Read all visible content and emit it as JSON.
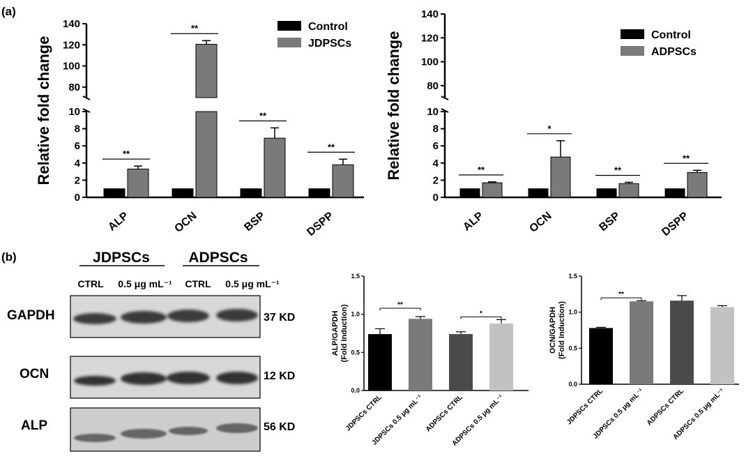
{
  "panels": {
    "a": "(a)",
    "b": "(b)"
  },
  "chart_data": [
    {
      "type": "bar",
      "panel": "(a)",
      "ylabel": "Relative fold change",
      "y_axis_break": true,
      "y_ranges": [
        [
          0,
          10
        ],
        [
          70,
          140
        ]
      ],
      "yticks_lower": [
        "0",
        "2",
        "4",
        "6",
        "8",
        "10"
      ],
      "yticks_upper": [
        "80",
        "100",
        "120",
        "140"
      ],
      "categories": [
        "ALP",
        "OCN",
        "BSP",
        "DSPP"
      ],
      "series": [
        {
          "name": "Control",
          "color": "#000000",
          "values": [
            1.0,
            1.0,
            1.0,
            1.0
          ],
          "errors": [
            0,
            0,
            0,
            0
          ]
        },
        {
          "name": "JDPSCs",
          "color": "#7a7a7a",
          "values": [
            3.3,
            120.5,
            6.9,
            3.8
          ],
          "errors": [
            0.35,
            3.5,
            1.2,
            0.65
          ]
        }
      ],
      "significance": [
        "**",
        "**",
        "**",
        "**"
      ]
    },
    {
      "type": "bar",
      "ylabel": "Relative fold change",
      "y_axis_break": true,
      "y_ranges": [
        [
          0,
          10
        ],
        [
          70,
          140
        ]
      ],
      "yticks_lower": [
        "0",
        "2",
        "4",
        "6",
        "8",
        "10"
      ],
      "yticks_upper": [
        "80",
        "100",
        "120",
        "140"
      ],
      "categories": [
        "ALP",
        "OCN",
        "BSP",
        "DSPP"
      ],
      "series": [
        {
          "name": "Control",
          "color": "#000000",
          "values": [
            1.0,
            1.0,
            1.0,
            1.0
          ],
          "errors": [
            0,
            0,
            0,
            0
          ]
        },
        {
          "name": "ADPSCs",
          "color": "#7a7a7a",
          "values": [
            1.7,
            4.7,
            1.6,
            2.9
          ],
          "errors": [
            0.1,
            1.9,
            0.15,
            0.25
          ]
        }
      ],
      "significance": [
        "**",
        "*",
        "**",
        "**"
      ]
    },
    {
      "type": "bar",
      "panel": "(b)",
      "ylabel": "ALP/GAPDH (Fold Induction)",
      "ylim": [
        0,
        1.5
      ],
      "yticks": [
        "0.0",
        "0.5",
        "1.0",
        "1.5"
      ],
      "categories": [
        "JDPSCs CTRL",
        "JDPSCs 0.5 μg mL⁻¹",
        "ADPSCs CTRL",
        "ADPSCs 0.5 μg mL⁻¹"
      ],
      "values": [
        0.74,
        0.94,
        0.74,
        0.88
      ],
      "errors": [
        0.07,
        0.03,
        0.03,
        0.05
      ],
      "colors": [
        "#000000",
        "#7a7a7a",
        "#4a4a4a",
        "#c2c2c2"
      ],
      "comparisons": [
        {
          "from": 0,
          "to": 1,
          "label": "**"
        },
        {
          "from": 2,
          "to": 3,
          "label": "*"
        }
      ]
    },
    {
      "type": "bar",
      "ylabel": "OCN/GAPDH (Fold Induction)",
      "ylim": [
        0,
        1.5
      ],
      "yticks": [
        "0.0",
        "0.5",
        "1.0",
        "1.5"
      ],
      "categories": [
        "JDPSCs CTRL",
        "JDPSCs 0.5 μg mL⁻¹",
        "ADPSCs CTRL",
        "ADPSCs 0.5 μg mL⁻¹"
      ],
      "values": [
        0.78,
        1.15,
        1.16,
        1.07
      ],
      "errors": [
        0.01,
        0.01,
        0.07,
        0.02
      ],
      "colors": [
        "#000000",
        "#7a7a7a",
        "#4a4a4a",
        "#c2c2c2"
      ],
      "comparisons": [
        {
          "from": 0,
          "to": 1,
          "label": "**"
        }
      ]
    }
  ],
  "blot": {
    "groups": [
      "JDPSCs",
      "ADPSCs"
    ],
    "lanes": [
      "CTRL",
      "0.5 μg mL⁻¹",
      "CTRL",
      "0.5 μg mL⁻¹"
    ],
    "rows": [
      {
        "protein": "GAPDH",
        "size": "37 KD"
      },
      {
        "protein": "OCN",
        "size": "12 KD"
      },
      {
        "protein": "ALP",
        "size": "56 KD"
      }
    ]
  }
}
